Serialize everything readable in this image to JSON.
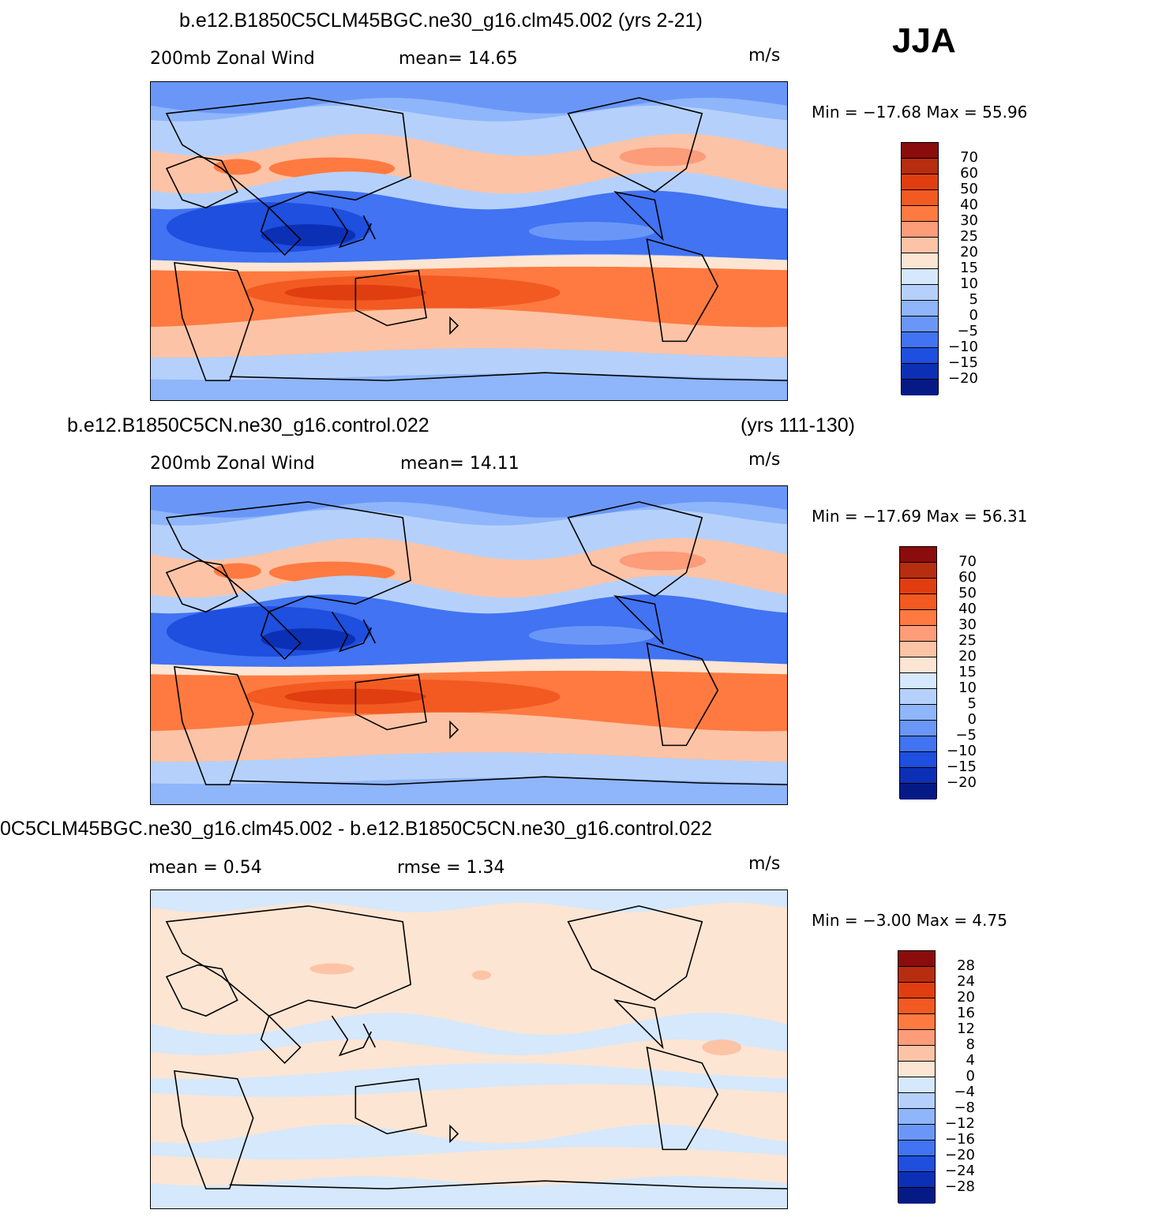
{
  "season": "JJA",
  "panels": [
    {
      "title": "b.e12.B1850C5CLM45BGC.ne30_g16.clm45.002 (yrs 2-21)",
      "title_right": "",
      "left_label": "200mb  Zonal Wind",
      "mid_label": "mean=   14.65",
      "units": "m/s",
      "minmax": "Min  =  −17.68  Max  =    55.96",
      "field": "control"
    },
    {
      "title": "b.e12.B1850C5CN.ne30_g16.control.022",
      "title_right": "(yrs 111-130)",
      "left_label": "200mb  Zonal Wind",
      "mid_label": "mean=   14.11",
      "units": "m/s",
      "minmax": "Min  =  −17.69  Max  =    56.31",
      "field": "control"
    },
    {
      "title": "0C5CLM45BGC.ne30_g16.clm45.002 - b.e12.B1850C5CN.ne30_g16.control.022",
      "title_right": "",
      "left_label": "mean  =      0.54",
      "mid_label": "rmse  =      1.34",
      "units": "m/s",
      "minmax": "Min  =    −3.00  Max  =      4.75",
      "field": "diff"
    }
  ],
  "colorbars": {
    "wind": {
      "labels": [
        "70",
        "60",
        "50",
        "40",
        "30",
        "25",
        "20",
        "15",
        "10",
        "5",
        "0",
        "−5",
        "−10",
        "−15",
        "−20"
      ],
      "colors": [
        "#8a0c0c",
        "#b72d10",
        "#e03e10",
        "#f25a22",
        "#ff7a40",
        "#fc9c78",
        "#fdc3a6",
        "#fde5d3",
        "#d6e8fb",
        "#b5d1fb",
        "#8fb5fa",
        "#6a97f7",
        "#4173f2",
        "#1e4fde",
        "#0c30b5",
        "#061a86"
      ]
    },
    "diff": {
      "labels": [
        "28",
        "24",
        "20",
        "16",
        "12",
        "8",
        "4",
        "0",
        "−4",
        "−8",
        "−12",
        "−16",
        "−20",
        "−24",
        "−28"
      ],
      "colors": [
        "#8a0c0c",
        "#b72d10",
        "#e03e10",
        "#f25a22",
        "#ff7a40",
        "#fc9c78",
        "#fdc3a6",
        "#fde5d3",
        "#d6e8fb",
        "#b5d1fb",
        "#8fb5fa",
        "#6a97f7",
        "#4173f2",
        "#1e4fde",
        "#0c30b5",
        "#061a86"
      ]
    }
  }
}
